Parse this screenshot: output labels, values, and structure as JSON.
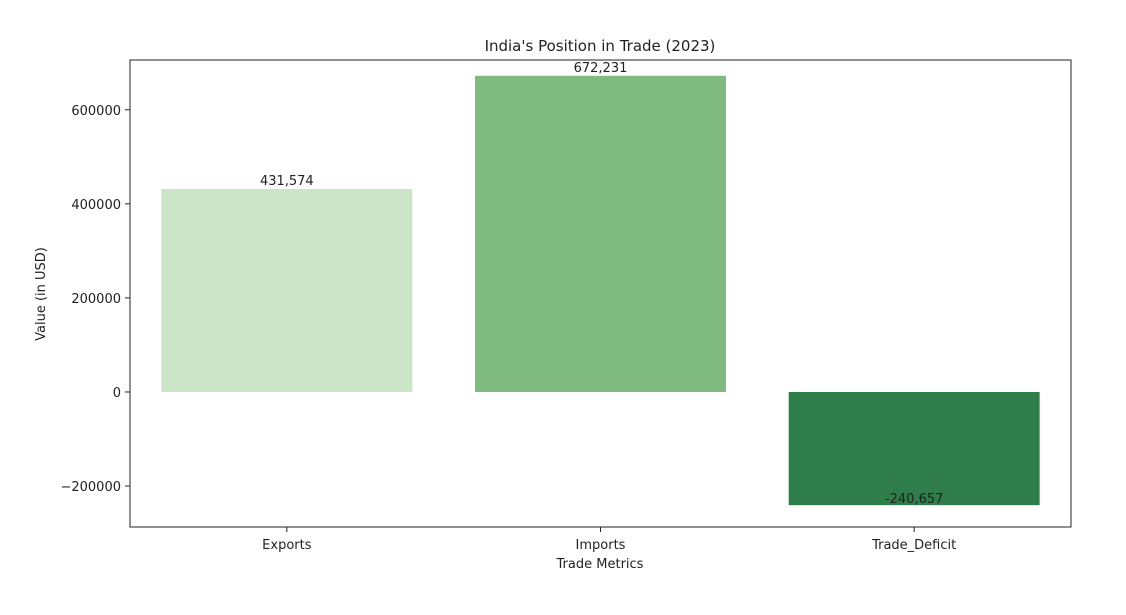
{
  "chart_data": {
    "type": "bar",
    "title": "India's Position in Trade (2023)",
    "xlabel": "Trade Metrics",
    "ylabel": "Value (in USD)",
    "categories": [
      "Exports",
      "Imports",
      "Trade_Deficit"
    ],
    "values": [
      431574,
      672231,
      -240657
    ],
    "value_labels": [
      "431,574",
      "672,231",
      "-240,657"
    ],
    "bar_colors": [
      "#cce5c8",
      "#7fba7f",
      "#2f7d4a"
    ],
    "yticks": [
      -200000,
      0,
      200000,
      400000,
      600000
    ],
    "ytick_labels": [
      "−200000",
      "0",
      "200000",
      "400000",
      "600000"
    ],
    "ylim": [
      -287101,
      705854
    ],
    "grid": false,
    "legend": "none"
  }
}
